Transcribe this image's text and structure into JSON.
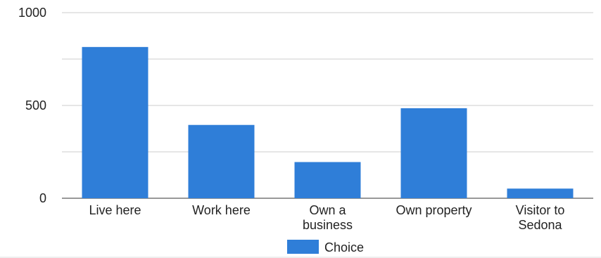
{
  "chart_data": {
    "type": "bar",
    "categories": [
      "Live here",
      "Work here",
      "Own a business",
      "Own property",
      "Visitor to Sedona"
    ],
    "category_lines": [
      [
        "Live here"
      ],
      [
        "Work here"
      ],
      [
        "Own a",
        "business"
      ],
      [
        "Own property"
      ],
      [
        "Visitor to",
        "Sedona"
      ]
    ],
    "series": [
      {
        "name": "Choice",
        "values": [
          815,
          395,
          195,
          485,
          52
        ],
        "color": "#2f7ed8"
      }
    ],
    "y_ticks": [
      0,
      500,
      1000
    ],
    "y_tick_labels": [
      "0",
      "500",
      "1000"
    ],
    "ylim": [
      0,
      1000
    ],
    "minor_grid_step": 250,
    "grid": true,
    "legend_position": "bottom"
  }
}
